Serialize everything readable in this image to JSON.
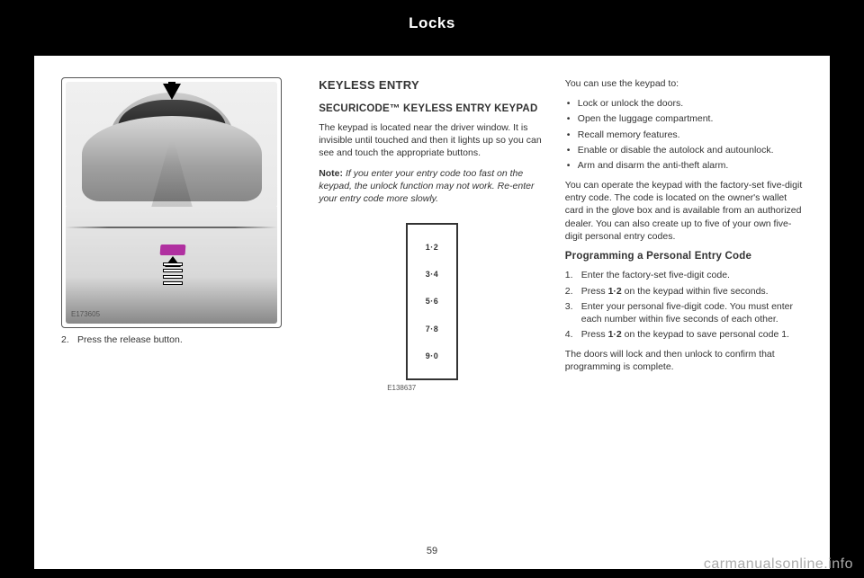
{
  "header": {
    "title": "Locks"
  },
  "col1": {
    "illus_id": "E173605",
    "step2": "Press the release button."
  },
  "col2": {
    "h2": "KEYLESS ENTRY",
    "h3": "SECURICODE™ KEYLESS ENTRY KEYPAD",
    "p1": "The keypad is located near the driver window. It is invisible until touched and then it lights up so you can see and touch the appropriate buttons.",
    "note_label": "Note:",
    "note_body": " If you enter your entry code too fast on the keypad, the unlock function may not work. Re-enter your entry code more slowly.",
    "keypad": {
      "keys": [
        "1·2",
        "3·4",
        "5·6",
        "7·8",
        "9·0"
      ],
      "label": "E138637"
    }
  },
  "col3": {
    "intro": "You can use the keypad to:",
    "uses": [
      "Lock or unlock the doors.",
      "Open the luggage compartment.",
      "Recall memory features.",
      "Enable or disable the autolock and autounlock.",
      "Arm and disarm the anti-theft alarm."
    ],
    "p_operate": "You can operate the keypad with the factory-set five-digit entry code. The code is located on the owner's wallet card in the glove box and is available from an authorized dealer. You can also create up to five of your own five-digit personal entry codes.",
    "h3": "Programming a Personal Entry Code",
    "steps": [
      {
        "pre": "Enter the factory-set five-digit code."
      },
      {
        "pre": "Press ",
        "bold": "1·2",
        "post": " on the keypad within five seconds."
      },
      {
        "pre": "Enter your personal five-digit code. You must enter each number within five seconds of each other."
      },
      {
        "pre": "Press ",
        "bold": "1·2",
        "post": " on the keypad to save personal code 1."
      }
    ],
    "p_confirm": "The doors will lock and then unlock to confirm that programming is complete."
  },
  "page_number": "59",
  "watermark": "carmanualsonline.info"
}
